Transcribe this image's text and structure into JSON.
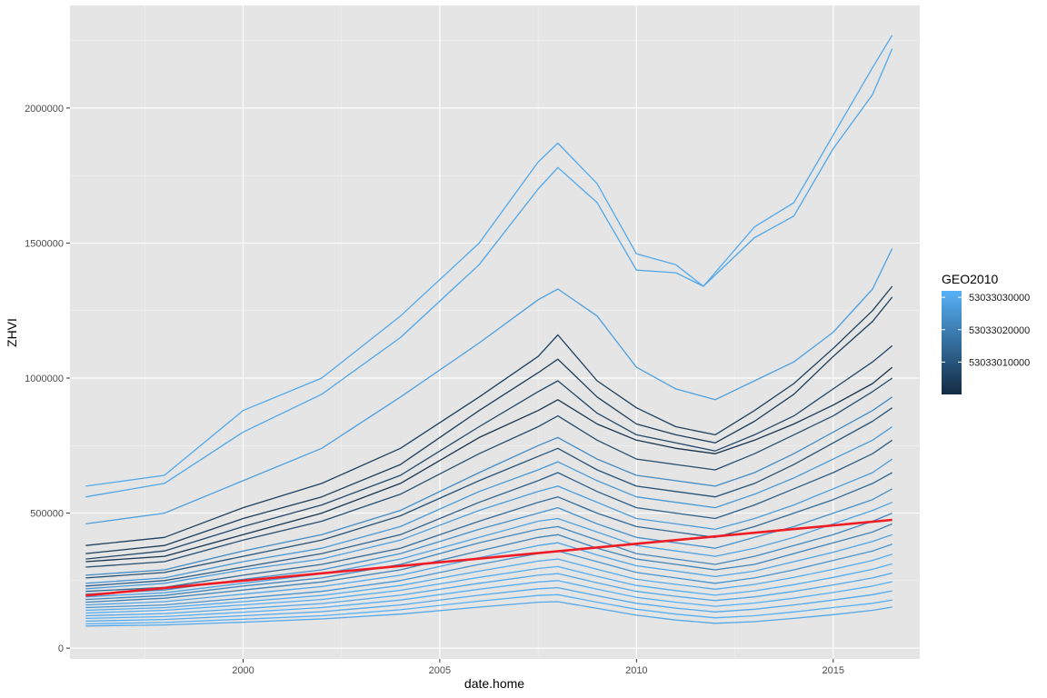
{
  "chart_data": {
    "type": "line",
    "title": "",
    "xlabel": "date.home",
    "ylabel": "ZHVI",
    "xlim": [
      1995.6,
      2017.2
    ],
    "ylim": [
      -40000,
      2380000
    ],
    "x_ticks": [
      {
        "value": 2000,
        "label": "2000"
      },
      {
        "value": 2005,
        "label": "2005"
      },
      {
        "value": 2010,
        "label": "2010"
      },
      {
        "value": 2015,
        "label": "2015"
      }
    ],
    "y_ticks": [
      {
        "value": 0,
        "label": "0"
      },
      {
        "value": 500000,
        "label": "500000"
      },
      {
        "value": 1000000,
        "label": "1000000"
      },
      {
        "value": 1500000,
        "label": "1500000"
      },
      {
        "value": 2000000,
        "label": "2000000"
      }
    ],
    "grid": true,
    "background": "#e5e5e5",
    "legend": {
      "title": "GEO2010",
      "position": "right",
      "type": "colorbar",
      "breaks": [
        "53033030000",
        "53033020000",
        "53033010000"
      ],
      "break_values": [
        53033030000,
        53033020000,
        53033010000
      ],
      "range": [
        53033000000,
        53033032000
      ],
      "color_low": "#132b43",
      "color_high": "#56b1f7"
    },
    "series": [
      {
        "group": 53033030000,
        "x": [
          1996,
          1998,
          2000,
          2002,
          2004,
          2006,
          2007.5,
          2008,
          2009,
          2010,
          2011,
          2011.7,
          2013,
          2014,
          2015,
          2016,
          2016.5
        ],
        "values": [
          600000,
          640000,
          880000,
          1000000,
          1230000,
          1500000,
          1800000,
          1870000,
          1720000,
          1460000,
          1420000,
          1340000,
          1560000,
          1650000,
          1900000,
          2150000,
          2270000
        ]
      },
      {
        "group": 53033029500,
        "x": [
          1996,
          1998,
          2000,
          2002,
          2004,
          2006,
          2007.5,
          2008,
          2009,
          2010,
          2011,
          2011.7,
          2013,
          2014,
          2015,
          2016,
          2016.5
        ],
        "values": [
          560000,
          610000,
          800000,
          940000,
          1150000,
          1420000,
          1700000,
          1780000,
          1650000,
          1400000,
          1390000,
          1340000,
          1520000,
          1600000,
          1850000,
          2050000,
          2220000
        ]
      },
      {
        "group": 53033028000,
        "x": [
          1996,
          1998,
          2000,
          2002,
          2004,
          2006,
          2007.5,
          2008,
          2009,
          2010,
          2011,
          2012,
          2013,
          2014,
          2015,
          2016,
          2016.5
        ],
        "values": [
          460000,
          500000,
          620000,
          740000,
          930000,
          1130000,
          1290000,
          1330000,
          1230000,
          1040000,
          960000,
          920000,
          990000,
          1060000,
          1170000,
          1330000,
          1480000
        ]
      },
      {
        "group": 53033005000,
        "x": [
          1996,
          1998,
          2000,
          2002,
          2004,
          2006,
          2007.5,
          2008,
          2009,
          2010,
          2011,
          2012,
          2013,
          2014,
          2015,
          2016,
          2016.5
        ],
        "values": [
          380000,
          410000,
          520000,
          610000,
          740000,
          930000,
          1080000,
          1160000,
          990000,
          890000,
          820000,
          790000,
          880000,
          980000,
          1110000,
          1250000,
          1340000
        ]
      },
      {
        "group": 53033004000,
        "x": [
          1996,
          1998,
          2000,
          2002,
          2004,
          2006,
          2007.5,
          2008,
          2009,
          2010,
          2011,
          2012,
          2013,
          2014,
          2015,
          2016,
          2016.5
        ],
        "values": [
          350000,
          380000,
          480000,
          560000,
          680000,
          880000,
          1020000,
          1070000,
          930000,
          830000,
          790000,
          760000,
          840000,
          940000,
          1080000,
          1210000,
          1300000
        ]
      },
      {
        "group": 53033006500,
        "x": [
          1996,
          1998,
          2000,
          2002,
          2004,
          2006,
          2007.5,
          2008,
          2009,
          2010,
          2011,
          2012,
          2013,
          2014,
          2015,
          2016,
          2016.5
        ],
        "values": [
          330000,
          360000,
          450000,
          530000,
          640000,
          820000,
          950000,
          990000,
          870000,
          790000,
          760000,
          730000,
          790000,
          860000,
          960000,
          1060000,
          1120000
        ]
      },
      {
        "group": 53033002000,
        "x": [
          1996,
          1998,
          2000,
          2002,
          2004,
          2006,
          2007.5,
          2008,
          2009,
          2010,
          2011,
          2012,
          2013,
          2014,
          2015,
          2016,
          2016.5
        ],
        "values": [
          320000,
          340000,
          420000,
          500000,
          610000,
          780000,
          880000,
          920000,
          830000,
          770000,
          740000,
          720000,
          770000,
          830000,
          900000,
          980000,
          1040000
        ]
      },
      {
        "group": 53033008000,
        "x": [
          1996,
          1998,
          2000,
          2002,
          2004,
          2006,
          2007.5,
          2008,
          2009,
          2010,
          2011,
          2012,
          2013,
          2014,
          2015,
          2016,
          2016.5
        ],
        "values": [
          300000,
          320000,
          400000,
          470000,
          570000,
          720000,
          820000,
          860000,
          770000,
          700000,
          680000,
          660000,
          720000,
          790000,
          860000,
          950000,
          1000000
        ]
      },
      {
        "group": 53033023000,
        "x": [
          1996,
          1998,
          2000,
          2002,
          2004,
          2006,
          2007.5,
          2008,
          2009,
          2010,
          2011,
          2012,
          2013,
          2014,
          2015,
          2016,
          2016.5
        ],
        "values": [
          270000,
          290000,
          360000,
          420000,
          510000,
          650000,
          750000,
          780000,
          700000,
          640000,
          620000,
          600000,
          650000,
          720000,
          800000,
          880000,
          930000
        ]
      },
      {
        "group": 53033009000,
        "x": [
          1996,
          1998,
          2000,
          2002,
          2004,
          2006,
          2007.5,
          2008,
          2009,
          2010,
          2011,
          2012,
          2013,
          2014,
          2015,
          2016,
          2016.5
        ],
        "values": [
          260000,
          280000,
          340000,
          400000,
          490000,
          620000,
          710000,
          740000,
          660000,
          600000,
          580000,
          560000,
          610000,
          680000,
          760000,
          840000,
          890000
        ]
      },
      {
        "group": 53033026000,
        "x": [
          1996,
          1998,
          2000,
          2002,
          2004,
          2006,
          2007.5,
          2008,
          2009,
          2010,
          2011,
          2012,
          2013,
          2014,
          2015,
          2016,
          2016.5
        ],
        "values": [
          240000,
          260000,
          320000,
          370000,
          450000,
          580000,
          660000,
          690000,
          620000,
          560000,
          540000,
          520000,
          570000,
          630000,
          700000,
          770000,
          820000
        ]
      },
      {
        "group": 53033012000,
        "x": [
          1996,
          1998,
          2000,
          2002,
          2004,
          2006,
          2007.5,
          2008,
          2009,
          2010,
          2011,
          2012,
          2013,
          2014,
          2015,
          2016,
          2016.5
        ],
        "values": [
          230000,
          250000,
          300000,
          350000,
          420000,
          540000,
          620000,
          650000,
          580000,
          520000,
          500000,
          480000,
          530000,
          590000,
          650000,
          720000,
          770000
        ]
      },
      {
        "group": 53033027000,
        "x": [
          1996,
          1998,
          2000,
          2002,
          2004,
          2006,
          2007.5,
          2008,
          2009,
          2010,
          2011,
          2012,
          2013,
          2014,
          2015,
          2016,
          2016.5
        ],
        "values": [
          220000,
          240000,
          290000,
          330000,
          400000,
          510000,
          580000,
          600000,
          540000,
          480000,
          460000,
          440000,
          480000,
          530000,
          590000,
          650000,
          700000
        ]
      },
      {
        "group": 53033015000,
        "x": [
          1996,
          1998,
          2000,
          2002,
          2004,
          2006,
          2007.5,
          2008,
          2009,
          2010,
          2011,
          2012,
          2013,
          2014,
          2015,
          2016,
          2016.5
        ],
        "values": [
          210000,
          225000,
          270000,
          310000,
          370000,
          470000,
          540000,
          560000,
          500000,
          450000,
          430000,
          410000,
          450000,
          500000,
          550000,
          610000,
          650000
        ]
      },
      {
        "group": 53033024000,
        "x": [
          1996,
          1998,
          2000,
          2002,
          2004,
          2006,
          2007.5,
          2008,
          2009,
          2010,
          2011,
          2012,
          2013,
          2014,
          2015,
          2016,
          2016.5
        ],
        "values": [
          200000,
          215000,
          255000,
          290000,
          350000,
          440000,
          500000,
          520000,
          460000,
          410000,
          390000,
          370000,
          410000,
          450000,
          500000,
          550000,
          590000
        ]
      },
      {
        "group": 53033028500,
        "x": [
          1996,
          1998,
          2000,
          2002,
          2004,
          2006,
          2007.5,
          2008,
          2009,
          2010,
          2011,
          2012,
          2013,
          2014,
          2015,
          2016,
          2016.5
        ],
        "values": [
          190000,
          205000,
          240000,
          275000,
          330000,
          410000,
          470000,
          480000,
          430000,
          380000,
          360000,
          340000,
          370000,
          410000,
          460000,
          510000,
          540000
        ]
      },
      {
        "group": 53033022000,
        "x": [
          1996,
          1998,
          2000,
          2002,
          2004,
          2006,
          2007.5,
          2008,
          2009,
          2010,
          2011,
          2012,
          2013,
          2014,
          2015,
          2016,
          2016.5
        ],
        "values": [
          180000,
          195000,
          230000,
          260000,
          310000,
          390000,
          440000,
          450000,
          400000,
          350000,
          330000,
          310000,
          340000,
          380000,
          420000,
          470000,
          500000
        ]
      },
      {
        "group": 53033021000,
        "x": [
          1996,
          1998,
          2000,
          2002,
          2004,
          2006,
          2007.5,
          2008,
          2009,
          2010,
          2011,
          2012,
          2013,
          2014,
          2015,
          2016,
          2016.5
        ],
        "values": [
          170000,
          185000,
          215000,
          245000,
          290000,
          360000,
          410000,
          420000,
          370000,
          330000,
          310000,
          290000,
          310000,
          350000,
          390000,
          430000,
          460000
        ]
      },
      {
        "group": 53033029000,
        "x": [
          1996,
          1998,
          2000,
          2002,
          2004,
          2006,
          2007.5,
          2008,
          2009,
          2010,
          2011,
          2012,
          2013,
          2014,
          2015,
          2016,
          2016.5
        ],
        "values": [
          160000,
          172000,
          200000,
          228000,
          270000,
          335000,
          380000,
          390000,
          345000,
          305000,
          285000,
          265000,
          285000,
          320000,
          355000,
          395000,
          420000
        ]
      },
      {
        "group": 53033025000,
        "x": [
          1996,
          1998,
          2000,
          2002,
          2004,
          2006,
          2007.5,
          2008,
          2009,
          2010,
          2011,
          2012,
          2013,
          2014,
          2015,
          2016,
          2016.5
        ],
        "values": [
          150000,
          160000,
          185000,
          210000,
          250000,
          310000,
          350000,
          360000,
          320000,
          280000,
          260000,
          240000,
          260000,
          290000,
          325000,
          360000,
          385000
        ]
      },
      {
        "group": 53033030500,
        "x": [
          1996,
          1998,
          2000,
          2002,
          2004,
          2006,
          2007.5,
          2008,
          2009,
          2010,
          2011,
          2012,
          2013,
          2014,
          2015,
          2016,
          2016.5
        ],
        "values": [
          140000,
          150000,
          172000,
          195000,
          232000,
          285000,
          322000,
          330000,
          292000,
          255000,
          236000,
          218000,
          236000,
          262000,
          292000,
          325000,
          348000
        ]
      },
      {
        "group": 53033031000,
        "x": [
          1996,
          1998,
          2000,
          2002,
          2004,
          2006,
          2007.5,
          2008,
          2009,
          2010,
          2011,
          2012,
          2013,
          2014,
          2015,
          2016,
          2016.5
        ],
        "values": [
          130000,
          140000,
          160000,
          180000,
          214000,
          262000,
          295000,
          302000,
          266000,
          232000,
          213000,
          196000,
          212000,
          235000,
          262000,
          292000,
          312000
        ]
      },
      {
        "group": 53033029800,
        "x": [
          1996,
          1998,
          2000,
          2002,
          2004,
          2006,
          2007.5,
          2008,
          2009,
          2010,
          2011,
          2012,
          2013,
          2014,
          2015,
          2016,
          2016.5
        ],
        "values": [
          120000,
          128000,
          146000,
          165000,
          196000,
          240000,
          270000,
          276000,
          242000,
          210000,
          192000,
          176000,
          190000,
          210000,
          234000,
          260000,
          278000
        ]
      },
      {
        "group": 53033031500,
        "x": [
          1996,
          1998,
          2000,
          2002,
          2004,
          2006,
          2007.5,
          2008,
          2009,
          2010,
          2011,
          2012,
          2013,
          2014,
          2015,
          2016,
          2016.5
        ],
        "values": [
          110000,
          117000,
          133000,
          150000,
          178000,
          218000,
          245000,
          250000,
          218000,
          188000,
          170000,
          155000,
          167000,
          185000,
          206000,
          230000,
          246000
        ]
      },
      {
        "group": 53033030200,
        "x": [
          1996,
          1998,
          2000,
          2002,
          2004,
          2006,
          2007.5,
          2008,
          2009,
          2010,
          2011,
          2012,
          2013,
          2014,
          2015,
          2016,
          2016.5
        ],
        "values": [
          100000,
          106000,
          120000,
          135000,
          160000,
          196000,
          220000,
          224000,
          194000,
          166000,
          148000,
          134000,
          144000,
          160000,
          178000,
          198000,
          212000
        ]
      },
      {
        "group": 53033031800,
        "x": [
          1996,
          1998,
          2000,
          2002,
          2004,
          2006,
          2007.5,
          2008,
          2009,
          2010,
          2011,
          2012,
          2013,
          2014,
          2015,
          2016,
          2016.5
        ],
        "values": [
          90000,
          95000,
          107000,
          120000,
          142000,
          174000,
          195000,
          198000,
          170000,
          144000,
          126000,
          112000,
          120000,
          134000,
          150000,
          166000,
          178000
        ]
      },
      {
        "group": 53033029900,
        "x": [
          1996,
          1998,
          2000,
          2002,
          2004,
          2006,
          2007.5,
          2008,
          2009,
          2010,
          2011,
          2012,
          2013,
          2014,
          2015,
          2016,
          2016.5
        ],
        "values": [
          82000,
          86000,
          96000,
          108000,
          126000,
          152000,
          170000,
          172000,
          147000,
          122000,
          104000,
          92000,
          98000,
          110000,
          124000,
          140000,
          152000
        ]
      }
    ],
    "trend": {
      "x": [
        1996,
        2016.5
      ],
      "values": [
        195000,
        475000
      ],
      "color": "#ee1c25"
    }
  }
}
